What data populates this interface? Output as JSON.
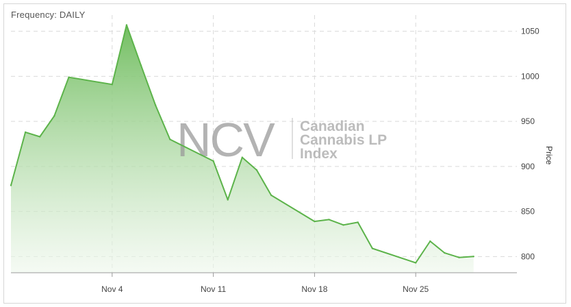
{
  "frequency_label": "Frequency: DAILY",
  "watermark": {
    "logo_text": "NCV",
    "lines": [
      "Canadian",
      "Cannabis LP",
      "Index"
    ]
  },
  "colors": {
    "line": "#5cb34a",
    "fill_top": "#6cbb5a",
    "fill_bottom": "#eef7ec",
    "grid": "#d9d9d9"
  },
  "chart_data": {
    "type": "area",
    "ylabel": "Price",
    "xlabel": "",
    "ylim": [
      782,
      1068
    ],
    "yticks": [
      800,
      850,
      900,
      950,
      1000,
      1050
    ],
    "x_tick_labels": [
      "Nov 4",
      "Nov 11",
      "Nov 18",
      "Nov 25"
    ],
    "x_tick_positions": [
      "2019-11-04",
      "2019-11-11",
      "2019-11-18",
      "2019-11-25"
    ],
    "xlim": [
      "2019-10-28",
      "2019-12-02"
    ],
    "grid": true,
    "series": [
      {
        "x": [
          "2019-10-28",
          "2019-10-29",
          "2019-10-30",
          "2019-10-31",
          "2019-11-01",
          "2019-11-04",
          "2019-11-05",
          "2019-11-06",
          "2019-11-07",
          "2019-11-08",
          "2019-11-11",
          "2019-11-12",
          "2019-11-13",
          "2019-11-14",
          "2019-11-15",
          "2019-11-18",
          "2019-11-19",
          "2019-11-20",
          "2019-11-21",
          "2019-11-22",
          "2019-11-25",
          "2019-11-26",
          "2019-11-27",
          "2019-11-28",
          "2019-11-29"
        ],
        "values": [
          879,
          938,
          933,
          956,
          999,
          991,
          1057,
          1012,
          968,
          930,
          906,
          863,
          910,
          896,
          868,
          839,
          841,
          835,
          838,
          809,
          793,
          817,
          804,
          799,
          800
        ]
      }
    ]
  }
}
